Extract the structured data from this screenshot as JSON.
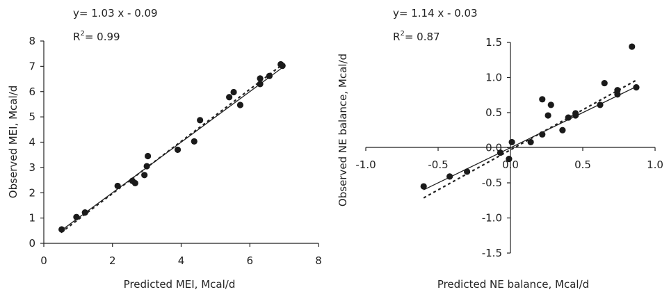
{
  "chart_data": [
    {
      "type": "scatter",
      "equation": "y= 1.03 x - 0.09",
      "r2_prefix": "R",
      "r2_sup": "2",
      "r2_value": "= 0.99",
      "xlabel": "Predicted MEI, Mcal/d",
      "ylabel": "Observed MEI, Mcal/d",
      "xlim": [
        0,
        8
      ],
      "ylim": [
        0,
        8
      ],
      "xticks": [
        "0",
        "2",
        "4",
        "6",
        "8"
      ],
      "yticks": [
        "0",
        "1",
        "2",
        "3",
        "4",
        "5",
        "6",
        "7",
        "8"
      ],
      "grid": false,
      "points": [
        {
          "x": 0.52,
          "y": 0.55
        },
        {
          "x": 0.95,
          "y": 1.04
        },
        {
          "x": 1.2,
          "y": 1.22
        },
        {
          "x": 2.15,
          "y": 2.27
        },
        {
          "x": 2.58,
          "y": 2.47
        },
        {
          "x": 2.66,
          "y": 2.38
        },
        {
          "x": 2.93,
          "y": 2.7
        },
        {
          "x": 3.0,
          "y": 3.05
        },
        {
          "x": 3.03,
          "y": 3.45
        },
        {
          "x": 3.9,
          "y": 3.7
        },
        {
          "x": 4.38,
          "y": 4.03
        },
        {
          "x": 4.55,
          "y": 4.87
        },
        {
          "x": 5.4,
          "y": 5.78
        },
        {
          "x": 5.53,
          "y": 5.98
        },
        {
          "x": 5.72,
          "y": 5.47
        },
        {
          "x": 6.3,
          "y": 6.52
        },
        {
          "x": 6.3,
          "y": 6.3
        },
        {
          "x": 6.57,
          "y": 6.62
        },
        {
          "x": 6.9,
          "y": 7.08
        },
        {
          "x": 6.95,
          "y": 7.02
        }
      ],
      "fit_line": {
        "slope": 1.0,
        "intercept": 0.0,
        "x_range": [
          0.5,
          7.0
        ],
        "style": "solid"
      },
      "regression_line": {
        "slope": 1.03,
        "intercept": -0.09,
        "x_range": [
          0.5,
          7.0
        ],
        "style": "dashed"
      }
    },
    {
      "type": "scatter",
      "equation": "y= 1.14 x - 0.03",
      "r2_prefix": "R",
      "r2_sup": "2",
      "r2_value": "= 0.87",
      "xlabel": "Predicted NE balance, Mcal/d",
      "ylabel": "Observed NE balance, Mcal/d",
      "xlim": [
        -1.0,
        1.0
      ],
      "ylim": [
        -1.5,
        1.5
      ],
      "xticks": [
        "-1.0",
        "-0.5",
        "0.0",
        "0.5",
        "1.0"
      ],
      "yticks": [
        "-1.5",
        "-1.0",
        "-0.5",
        "0.0",
        "0.5",
        "1.0",
        "1.5"
      ],
      "grid": false,
      "points": [
        {
          "x": -0.6,
          "y": -0.55
        },
        {
          "x": -0.42,
          "y": -0.41
        },
        {
          "x": -0.3,
          "y": -0.34
        },
        {
          "x": -0.07,
          "y": -0.07
        },
        {
          "x": -0.01,
          "y": -0.16
        },
        {
          "x": 0.01,
          "y": 0.08
        },
        {
          "x": 0.14,
          "y": 0.08
        },
        {
          "x": 0.22,
          "y": 0.19
        },
        {
          "x": 0.22,
          "y": 0.69
        },
        {
          "x": 0.26,
          "y": 0.46
        },
        {
          "x": 0.28,
          "y": 0.61
        },
        {
          "x": 0.36,
          "y": 0.25
        },
        {
          "x": 0.4,
          "y": 0.43
        },
        {
          "x": 0.45,
          "y": 0.46
        },
        {
          "x": 0.45,
          "y": 0.49
        },
        {
          "x": 0.62,
          "y": 0.61
        },
        {
          "x": 0.65,
          "y": 0.92
        },
        {
          "x": 0.74,
          "y": 0.82
        },
        {
          "x": 0.74,
          "y": 0.76
        },
        {
          "x": 0.84,
          "y": 1.44
        },
        {
          "x": 0.87,
          "y": 0.86
        }
      ],
      "fit_line": {
        "slope": 1.0,
        "intercept": 0.0,
        "x_range": [
          -0.6,
          0.87
        ],
        "style": "solid"
      },
      "regression_line": {
        "slope": 1.14,
        "intercept": -0.03,
        "x_range": [
          -0.6,
          0.87
        ],
        "style": "dashed"
      }
    }
  ]
}
